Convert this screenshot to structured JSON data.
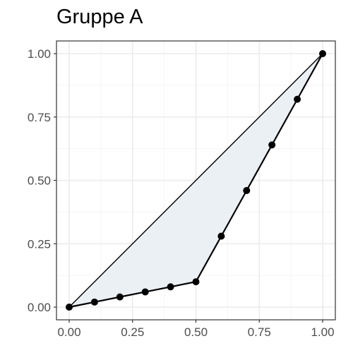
{
  "chart_data": {
    "type": "line",
    "title": "Gruppe A",
    "xlabel": "",
    "ylabel": "",
    "xlim": [
      0,
      1
    ],
    "ylim": [
      0,
      1
    ],
    "x_ticks": [
      "0.00",
      "0.25",
      "0.50",
      "0.75",
      "1.00"
    ],
    "y_ticks": [
      "0.00",
      "0.25",
      "0.50",
      "0.75",
      "1.00"
    ],
    "grid": true,
    "legend": "none",
    "series": [
      {
        "x": [
          0.0,
          0.1,
          0.2,
          0.3,
          0.4,
          0.5,
          0.6,
          0.7,
          0.8,
          0.9,
          1.0
        ],
        "y": [
          0.0,
          0.02,
          0.04,
          0.06,
          0.08,
          0.1,
          0.28,
          0.46,
          0.64,
          0.82,
          1.0
        ]
      }
    ],
    "reference_line": {
      "x": [
        0,
        1
      ],
      "y": [
        0,
        1
      ]
    },
    "colors": {
      "line": "#000000",
      "points": "#000000",
      "fill": "#ebf0f5",
      "grid_major": "#ebebeb",
      "grid_minor": "#f5f5f5",
      "panel_border": "#333333"
    }
  }
}
